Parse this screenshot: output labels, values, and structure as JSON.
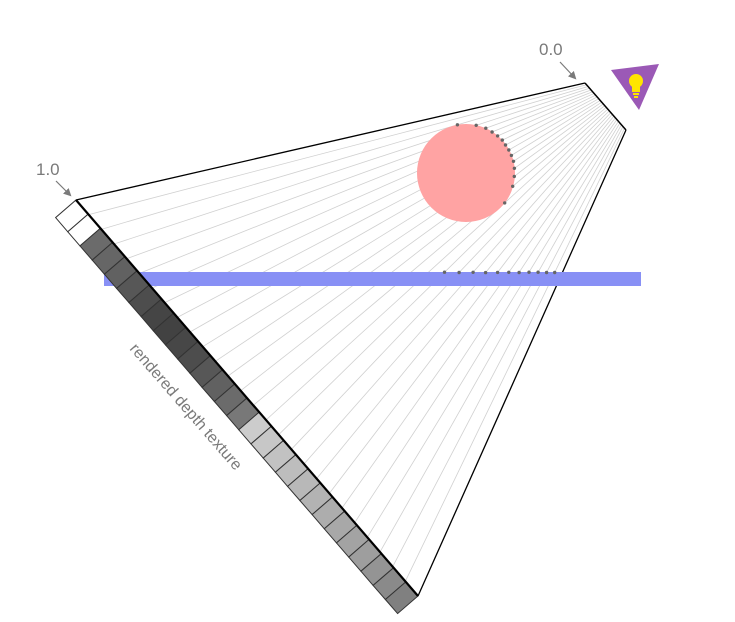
{
  "labels": {
    "far_value": "0.0",
    "near_value": "1.0",
    "texture_caption": "rendered depth texture"
  },
  "icons": {
    "light": "light-bulb-icon"
  },
  "depth_texture": {
    "cells": [
      1.0,
      1.0,
      0.42,
      0.4,
      0.38,
      0.34,
      0.3,
      0.27,
      0.26,
      0.28,
      0.3,
      0.34,
      0.38,
      0.42,
      0.47,
      0.8,
      0.78,
      0.76,
      0.74,
      0.72,
      0.7,
      0.68,
      0.66,
      0.64,
      0.62,
      0.58,
      0.54,
      0.5
    ]
  },
  "colors": {
    "frustum_line": "#000000",
    "ray_line": "#c8c8c8",
    "hit_dot": "#777777",
    "sphere_fill": "#ffa3a3",
    "plane_fill": "#8890f5",
    "light_fill": "#9b59b6",
    "bulb_fill": "#ffe600",
    "label_text": "#7a7a7a"
  }
}
